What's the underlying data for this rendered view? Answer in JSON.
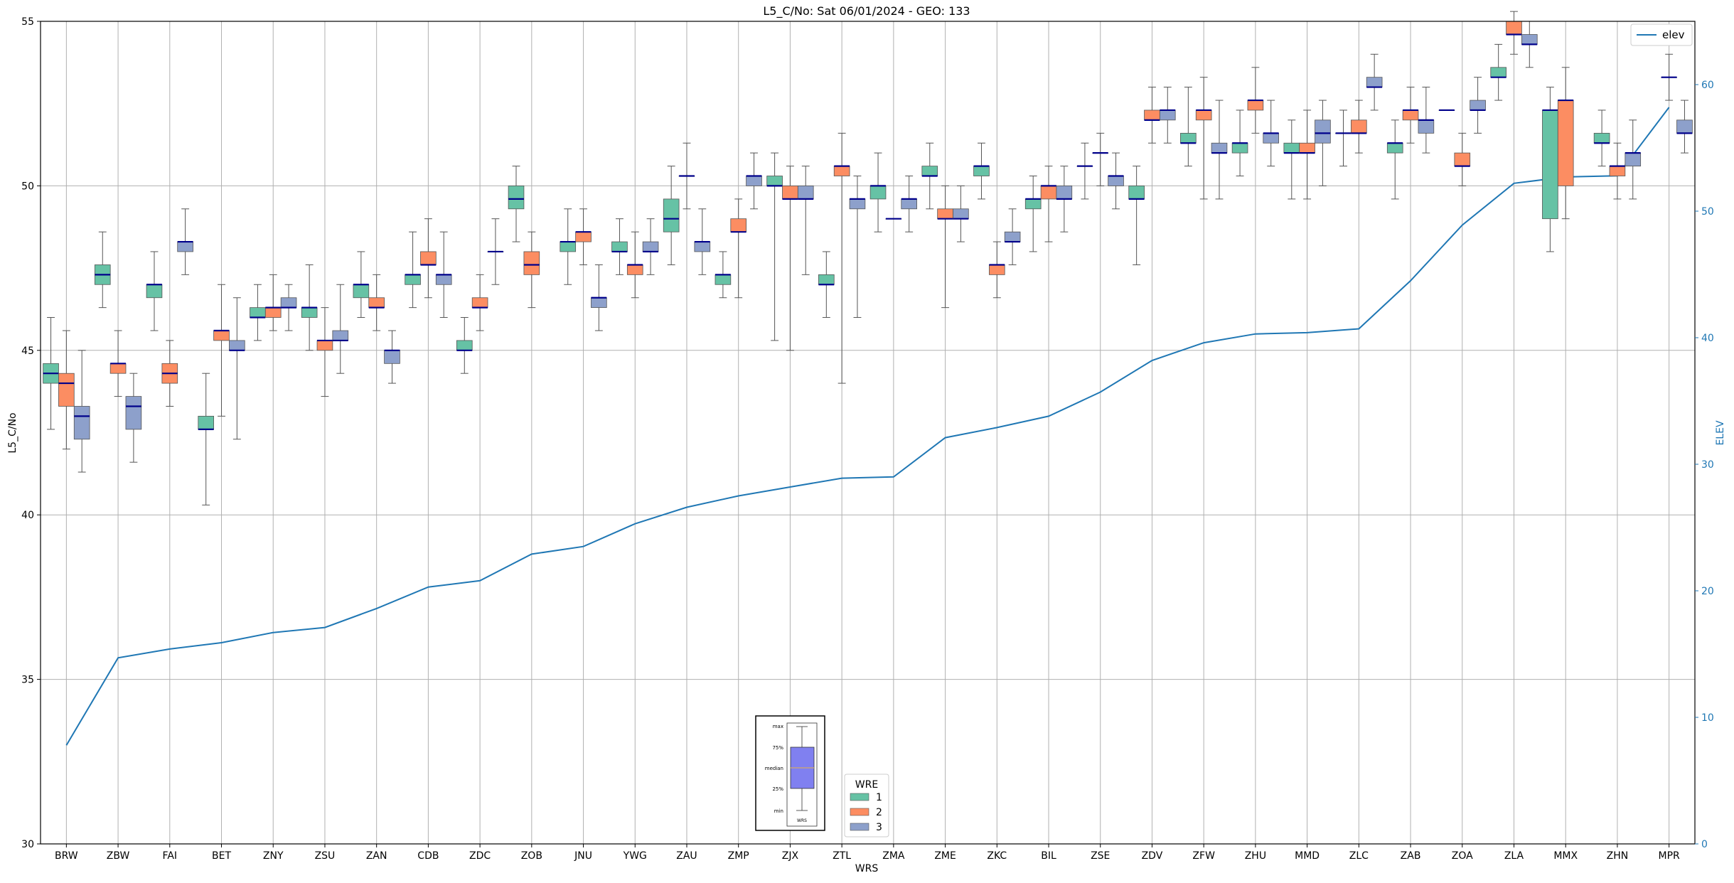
{
  "chart_data": {
    "type": "box+line",
    "title": "L5_C/No: Sat 06/01/2024 - GEO: 133",
    "xlabel": "WRS",
    "ylabel": "L5_C/No",
    "y2label": "ELEV",
    "ylim": [
      30,
      55
    ],
    "y2lim": [
      0,
      65
    ],
    "yticks": [
      30,
      35,
      40,
      45,
      50,
      55
    ],
    "y2ticks": [
      0,
      10,
      20,
      30,
      40,
      50,
      60
    ],
    "grid": true,
    "categories": [
      "BRW",
      "ZBW",
      "FAI",
      "BET",
      "ZNY",
      "ZSU",
      "ZAN",
      "CDB",
      "ZDC",
      "ZOB",
      "JNU",
      "YWG",
      "ZAU",
      "ZMP",
      "ZJX",
      "ZTL",
      "ZMA",
      "ZME",
      "ZKC",
      "BIL",
      "ZSE",
      "ZDV",
      "ZFW",
      "ZHU",
      "MMD",
      "ZLC",
      "ZAB",
      "ZOA",
      "ZLA",
      "MMX",
      "ZHN",
      "MPR"
    ],
    "wre_legend": {
      "title": "WRE",
      "entries": [
        "1",
        "2",
        "3"
      ]
    },
    "line_legend": {
      "label": "elev"
    },
    "colors": {
      "wre1": "#66c2a5",
      "wre2": "#fc8d62",
      "wre3": "#8da0cb",
      "median": "#00008b",
      "elev": "#1f77b4",
      "whisker": "#555555"
    },
    "elev": [
      7.8,
      14.7,
      15.4,
      15.9,
      16.7,
      17.1,
      18.6,
      20.3,
      20.8,
      22.9,
      23.5,
      25.3,
      26.6,
      27.5,
      28.2,
      28.9,
      29.0,
      32.1,
      32.9,
      33.8,
      35.7,
      38.2,
      39.6,
      40.3,
      40.4,
      40.7,
      44.5,
      48.9,
      52.2,
      52.7,
      52.8,
      58.2
    ],
    "boxes": [
      {
        "wrs": "BRW",
        "wre": 1,
        "min": 42.6,
        "q1": 44.0,
        "median": 44.3,
        "q3": 44.6,
        "max": 46.0
      },
      {
        "wrs": "BRW",
        "wre": 2,
        "min": 42.0,
        "q1": 43.3,
        "median": 44.0,
        "q3": 44.3,
        "max": 45.6
      },
      {
        "wrs": "BRW",
        "wre": 3,
        "min": 41.3,
        "q1": 42.3,
        "median": 43.0,
        "q3": 43.3,
        "max": 45.0
      },
      {
        "wrs": "ZBW",
        "wre": 1,
        "min": 46.3,
        "q1": 47.0,
        "median": 47.3,
        "q3": 47.6,
        "max": 48.6
      },
      {
        "wrs": "ZBW",
        "wre": 2,
        "min": 43.6,
        "q1": 44.3,
        "median": 44.6,
        "q3": 44.6,
        "max": 45.6
      },
      {
        "wrs": "ZBW",
        "wre": 3,
        "min": 41.6,
        "q1": 42.6,
        "median": 43.3,
        "q3": 43.6,
        "max": 44.3
      },
      {
        "wrs": "FAI",
        "wre": 1,
        "min": 45.6,
        "q1": 46.6,
        "median": 47.0,
        "q3": 47.0,
        "max": 48.0
      },
      {
        "wrs": "FAI",
        "wre": 2,
        "min": 43.3,
        "q1": 44.0,
        "median": 44.3,
        "q3": 44.6,
        "max": 45.3
      },
      {
        "wrs": "FAI",
        "wre": 3,
        "min": 47.3,
        "q1": 48.0,
        "median": 48.3,
        "q3": 48.3,
        "max": 49.3
      },
      {
        "wrs": "BET",
        "wre": 1,
        "min": 40.3,
        "q1": 42.6,
        "median": 42.6,
        "q3": 43.0,
        "max": 44.3
      },
      {
        "wrs": "BET",
        "wre": 2,
        "min": 43.0,
        "q1": 45.3,
        "median": 45.6,
        "q3": 45.6,
        "max": 47.0
      },
      {
        "wrs": "BET",
        "wre": 3,
        "min": 42.3,
        "q1": 45.0,
        "median": 45.0,
        "q3": 45.3,
        "max": 46.6
      },
      {
        "wrs": "ZNY",
        "wre": 1,
        "min": 45.3,
        "q1": 46.0,
        "median": 46.0,
        "q3": 46.3,
        "max": 47.0
      },
      {
        "wrs": "ZNY",
        "wre": 2,
        "min": 45.6,
        "q1": 46.0,
        "median": 46.3,
        "q3": 46.3,
        "max": 47.3
      },
      {
        "wrs": "ZNY",
        "wre": 3,
        "min": 45.6,
        "q1": 46.3,
        "median": 46.3,
        "q3": 46.6,
        "max": 47.0
      },
      {
        "wrs": "ZSU",
        "wre": 1,
        "min": 45.0,
        "q1": 46.0,
        "median": 46.3,
        "q3": 46.3,
        "max": 47.6
      },
      {
        "wrs": "ZSU",
        "wre": 2,
        "min": 43.6,
        "q1": 45.0,
        "median": 45.3,
        "q3": 45.3,
        "max": 46.3
      },
      {
        "wrs": "ZSU",
        "wre": 3,
        "min": 44.3,
        "q1": 45.3,
        "median": 45.3,
        "q3": 45.6,
        "max": 47.0
      },
      {
        "wrs": "ZAN",
        "wre": 1,
        "min": 46.0,
        "q1": 46.6,
        "median": 47.0,
        "q3": 47.0,
        "max": 48.0
      },
      {
        "wrs": "ZAN",
        "wre": 2,
        "min": 45.6,
        "q1": 46.3,
        "median": 46.3,
        "q3": 46.6,
        "max": 47.3
      },
      {
        "wrs": "ZAN",
        "wre": 3,
        "min": 44.0,
        "q1": 44.6,
        "median": 45.0,
        "q3": 45.0,
        "max": 45.6
      },
      {
        "wrs": "CDB",
        "wre": 1,
        "min": 46.3,
        "q1": 47.0,
        "median": 47.3,
        "q3": 47.3,
        "max": 48.6
      },
      {
        "wrs": "CDB",
        "wre": 2,
        "min": 46.6,
        "q1": 47.6,
        "median": 47.6,
        "q3": 48.0,
        "max": 49.0
      },
      {
        "wrs": "CDB",
        "wre": 3,
        "min": 46.0,
        "q1": 47.0,
        "median": 47.3,
        "q3": 47.3,
        "max": 48.6
      },
      {
        "wrs": "ZDC",
        "wre": 1,
        "min": 44.3,
        "q1": 45.0,
        "median": 45.0,
        "q3": 45.3,
        "max": 46.0
      },
      {
        "wrs": "ZDC",
        "wre": 2,
        "min": 45.6,
        "q1": 46.3,
        "median": 46.3,
        "q3": 46.6,
        "max": 47.3
      },
      {
        "wrs": "ZDC",
        "wre": 3,
        "min": 47.0,
        "q1": 48.0,
        "median": 48.0,
        "q3": 48.0,
        "max": 49.0
      },
      {
        "wrs": "ZOB",
        "wre": 1,
        "min": 48.3,
        "q1": 49.3,
        "median": 49.6,
        "q3": 50.0,
        "max": 50.6
      },
      {
        "wrs": "ZOB",
        "wre": 2,
        "min": 46.3,
        "q1": 47.3,
        "median": 47.6,
        "q3": 48.0,
        "max": 48.6
      },
      {
        "wrs": "JNU",
        "wre": 1,
        "min": 47.0,
        "q1": 48.0,
        "median": 48.3,
        "q3": 48.3,
        "max": 49.3
      },
      {
        "wrs": "JNU",
        "wre": 2,
        "min": 47.6,
        "q1": 48.3,
        "median": 48.6,
        "q3": 48.6,
        "max": 49.3
      },
      {
        "wrs": "JNU",
        "wre": 3,
        "min": 45.6,
        "q1": 46.3,
        "median": 46.6,
        "q3": 46.6,
        "max": 47.6
      },
      {
        "wrs": "YWG",
        "wre": 1,
        "min": 47.3,
        "q1": 48.0,
        "median": 48.0,
        "q3": 48.3,
        "max": 49.0
      },
      {
        "wrs": "YWG",
        "wre": 2,
        "min": 46.6,
        "q1": 47.3,
        "median": 47.6,
        "q3": 47.6,
        "max": 48.6
      },
      {
        "wrs": "YWG",
        "wre": 3,
        "min": 47.3,
        "q1": 48.0,
        "median": 48.0,
        "q3": 48.3,
        "max": 49.0
      },
      {
        "wrs": "ZAU",
        "wre": 1,
        "min": 47.6,
        "q1": 48.6,
        "median": 49.0,
        "q3": 49.6,
        "max": 50.6
      },
      {
        "wrs": "ZAU",
        "wre": 2,
        "min": 49.3,
        "q1": 50.3,
        "median": 50.3,
        "q3": 50.3,
        "max": 51.3
      },
      {
        "wrs": "ZAU",
        "wre": 3,
        "min": 47.3,
        "q1": 48.0,
        "median": 48.3,
        "q3": 48.3,
        "max": 49.3
      },
      {
        "wrs": "ZMP",
        "wre": 1,
        "min": 46.6,
        "q1": 47.0,
        "median": 47.3,
        "q3": 47.3,
        "max": 48.0
      },
      {
        "wrs": "ZMP",
        "wre": 2,
        "min": 46.6,
        "q1": 48.6,
        "median": 48.6,
        "q3": 49.0,
        "max": 49.6
      },
      {
        "wrs": "ZMP",
        "wre": 3,
        "min": 49.3,
        "q1": 50.0,
        "median": 50.3,
        "q3": 50.3,
        "max": 51.0
      },
      {
        "wrs": "ZJX",
        "wre": 1,
        "min": 45.3,
        "q1": 50.0,
        "median": 50.0,
        "q3": 50.3,
        "max": 51.0
      },
      {
        "wrs": "ZJX",
        "wre": 2,
        "min": 45.0,
        "q1": 49.6,
        "median": 49.6,
        "q3": 50.0,
        "max": 50.6
      },
      {
        "wrs": "ZJX",
        "wre": 3,
        "min": 47.3,
        "q1": 49.6,
        "median": 49.6,
        "q3": 50.0,
        "max": 50.6
      },
      {
        "wrs": "ZTL",
        "wre": 1,
        "min": 46.0,
        "q1": 47.0,
        "median": 47.0,
        "q3": 47.3,
        "max": 48.0
      },
      {
        "wrs": "ZTL",
        "wre": 2,
        "min": 44.0,
        "q1": 50.3,
        "median": 50.6,
        "q3": 50.6,
        "max": 51.6
      },
      {
        "wrs": "ZTL",
        "wre": 3,
        "min": 46.0,
        "q1": 49.3,
        "median": 49.6,
        "q3": 49.6,
        "max": 50.3
      },
      {
        "wrs": "ZMA",
        "wre": 1,
        "min": 48.6,
        "q1": 49.6,
        "median": 50.0,
        "q3": 50.0,
        "max": 51.0
      },
      {
        "wrs": "ZMA",
        "wre": 2,
        "min": 49.0,
        "q1": 49.0,
        "median": 49.0,
        "q3": 49.0,
        "max": 49.0
      },
      {
        "wrs": "ZMA",
        "wre": 3,
        "min": 48.6,
        "q1": 49.3,
        "median": 49.6,
        "q3": 49.6,
        "max": 50.3
      },
      {
        "wrs": "ZME",
        "wre": 1,
        "min": 49.3,
        "q1": 50.3,
        "median": 50.3,
        "q3": 50.6,
        "max": 51.3
      },
      {
        "wrs": "ZME",
        "wre": 2,
        "min": 46.3,
        "q1": 49.0,
        "median": 49.0,
        "q3": 49.3,
        "max": 50.0
      },
      {
        "wrs": "ZME",
        "wre": 3,
        "min": 48.3,
        "q1": 49.0,
        "median": 49.0,
        "q3": 49.3,
        "max": 50.0
      },
      {
        "wrs": "ZKC",
        "wre": 1,
        "min": 49.6,
        "q1": 50.3,
        "median": 50.6,
        "q3": 50.6,
        "max": 51.3
      },
      {
        "wrs": "ZKC",
        "wre": 2,
        "min": 46.6,
        "q1": 47.3,
        "median": 47.6,
        "q3": 47.6,
        "max": 48.3
      },
      {
        "wrs": "ZKC",
        "wre": 3,
        "min": 47.6,
        "q1": 48.3,
        "median": 48.3,
        "q3": 48.6,
        "max": 49.3
      },
      {
        "wrs": "BIL",
        "wre": 1,
        "min": 48.0,
        "q1": 49.3,
        "median": 49.6,
        "q3": 49.6,
        "max": 50.3
      },
      {
        "wrs": "BIL",
        "wre": 2,
        "min": 48.3,
        "q1": 49.6,
        "median": 50.0,
        "q3": 50.0,
        "max": 50.6
      },
      {
        "wrs": "BIL",
        "wre": 3,
        "min": 48.6,
        "q1": 49.6,
        "median": 49.6,
        "q3": 50.0,
        "max": 50.6
      },
      {
        "wrs": "ZSE",
        "wre": 1,
        "min": 49.6,
        "q1": 50.6,
        "median": 50.6,
        "q3": 50.6,
        "max": 51.3
      },
      {
        "wrs": "ZSE",
        "wre": 2,
        "min": 50.0,
        "q1": 51.0,
        "median": 51.0,
        "q3": 51.0,
        "max": 51.6
      },
      {
        "wrs": "ZSE",
        "wre": 3,
        "min": 49.3,
        "q1": 50.0,
        "median": 50.3,
        "q3": 50.3,
        "max": 51.0
      },
      {
        "wrs": "ZDV",
        "wre": 1,
        "min": 47.6,
        "q1": 49.6,
        "median": 49.6,
        "q3": 50.0,
        "max": 50.6
      },
      {
        "wrs": "ZDV",
        "wre": 2,
        "min": 51.3,
        "q1": 52.0,
        "median": 52.0,
        "q3": 52.3,
        "max": 53.0
      },
      {
        "wrs": "ZDV",
        "wre": 3,
        "min": 51.3,
        "q1": 52.0,
        "median": 52.3,
        "q3": 52.3,
        "max": 53.0
      },
      {
        "wrs": "ZFW",
        "wre": 1,
        "min": 50.6,
        "q1": 51.3,
        "median": 51.3,
        "q3": 51.6,
        "max": 53.0
      },
      {
        "wrs": "ZFW",
        "wre": 2,
        "min": 49.6,
        "q1": 52.0,
        "median": 52.3,
        "q3": 52.3,
        "max": 53.3
      },
      {
        "wrs": "ZFW",
        "wre": 3,
        "min": 49.6,
        "q1": 51.0,
        "median": 51.0,
        "q3": 51.3,
        "max": 52.6
      },
      {
        "wrs": "ZHU",
        "wre": 1,
        "min": 50.3,
        "q1": 51.0,
        "median": 51.3,
        "q3": 51.3,
        "max": 52.3
      },
      {
        "wrs": "ZHU",
        "wre": 2,
        "min": 51.6,
        "q1": 52.3,
        "median": 52.6,
        "q3": 52.6,
        "max": 53.6
      },
      {
        "wrs": "ZHU",
        "wre": 3,
        "min": 50.6,
        "q1": 51.3,
        "median": 51.6,
        "q3": 51.6,
        "max": 52.6
      },
      {
        "wrs": "MMD",
        "wre": 1,
        "min": 49.6,
        "q1": 51.0,
        "median": 51.0,
        "q3": 51.3,
        "max": 52.0
      },
      {
        "wrs": "MMD",
        "wre": 2,
        "min": 49.6,
        "q1": 51.0,
        "median": 51.0,
        "q3": 51.3,
        "max": 52.3
      },
      {
        "wrs": "MMD",
        "wre": 3,
        "min": 50.0,
        "q1": 51.3,
        "median": 51.6,
        "q3": 52.0,
        "max": 52.6
      },
      {
        "wrs": "ZLC",
        "wre": 1,
        "min": 50.6,
        "q1": 51.6,
        "median": 51.6,
        "q3": 51.6,
        "max": 52.3
      },
      {
        "wrs": "ZLC",
        "wre": 2,
        "min": 51.0,
        "q1": 51.6,
        "median": 51.6,
        "q3": 52.0,
        "max": 52.6
      },
      {
        "wrs": "ZLC",
        "wre": 3,
        "min": 52.3,
        "q1": 53.0,
        "median": 53.0,
        "q3": 53.3,
        "max": 54.0
      },
      {
        "wrs": "ZAB",
        "wre": 1,
        "min": 49.6,
        "q1": 51.0,
        "median": 51.3,
        "q3": 51.3,
        "max": 52.0
      },
      {
        "wrs": "ZAB",
        "wre": 2,
        "min": 51.3,
        "q1": 52.0,
        "median": 52.3,
        "q3": 52.3,
        "max": 53.0
      },
      {
        "wrs": "ZAB",
        "wre": 3,
        "min": 51.0,
        "q1": 51.6,
        "median": 52.0,
        "q3": 52.0,
        "max": 53.0
      },
      {
        "wrs": "ZOA",
        "wre": 1,
        "min": 52.3,
        "q1": 52.3,
        "median": 52.3,
        "q3": 52.3,
        "max": 52.3
      },
      {
        "wrs": "ZOA",
        "wre": 2,
        "min": 50.0,
        "q1": 50.6,
        "median": 50.6,
        "q3": 51.0,
        "max": 51.6
      },
      {
        "wrs": "ZOA",
        "wre": 3,
        "min": 51.6,
        "q1": 52.3,
        "median": 52.3,
        "q3": 52.6,
        "max": 53.3
      },
      {
        "wrs": "ZLA",
        "wre": 1,
        "min": 52.6,
        "q1": 53.3,
        "median": 53.3,
        "q3": 53.6,
        "max": 54.3
      },
      {
        "wrs": "ZLA",
        "wre": 2,
        "min": 54.0,
        "q1": 54.6,
        "median": 54.6,
        "q3": 55.0,
        "max": 55.3
      },
      {
        "wrs": "ZLA",
        "wre": 3,
        "min": 53.6,
        "q1": 54.3,
        "median": 54.3,
        "q3": 54.6,
        "max": 55.0
      },
      {
        "wrs": "MMX",
        "wre": 1,
        "min": 48.0,
        "q1": 49.0,
        "median": 52.3,
        "q3": 52.3,
        "max": 53.0
      },
      {
        "wrs": "MMX",
        "wre": 2,
        "min": 49.0,
        "q1": 50.0,
        "median": 52.6,
        "q3": 52.6,
        "max": 53.6
      },
      {
        "wrs": "ZHN",
        "wre": 1,
        "min": 50.6,
        "q1": 51.3,
        "median": 51.3,
        "q3": 51.6,
        "max": 52.3
      },
      {
        "wrs": "ZHN",
        "wre": 2,
        "min": 49.6,
        "q1": 50.3,
        "median": 50.6,
        "q3": 50.6,
        "max": 51.3
      },
      {
        "wrs": "ZHN",
        "wre": 3,
        "min": 49.6,
        "q1": 50.6,
        "median": 51.0,
        "q3": 51.0,
        "max": 52.0
      },
      {
        "wrs": "MPR",
        "wre": 2,
        "min": 52.6,
        "q1": 53.3,
        "median": 53.3,
        "q3": 53.3,
        "max": 54.0
      },
      {
        "wrs": "MPR",
        "wre": 3,
        "min": 51.0,
        "q1": 51.6,
        "median": 51.6,
        "q3": 52.0,
        "max": 52.6
      }
    ],
    "boxplot_key": {
      "labels": [
        "max",
        "75%",
        "median",
        "25%",
        "min"
      ],
      "xlabel": "WRS",
      "colors": {
        "box": "#8080f0",
        "median": "#d4a86a"
      }
    }
  }
}
